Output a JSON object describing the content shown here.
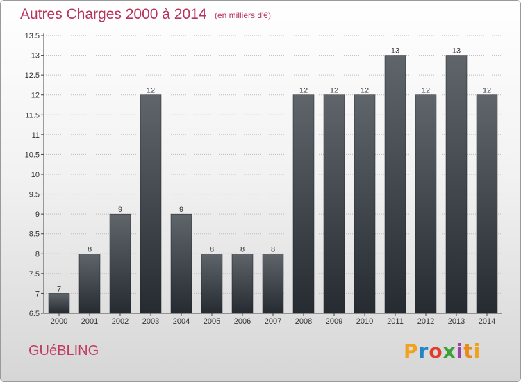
{
  "header": {
    "title": "Autres Charges 2000 à 2014",
    "subtitle": "(en milliers d'€)"
  },
  "footer": {
    "commune": "GUéBLING",
    "logo_text": "Proxiti"
  },
  "colors": {
    "title": "#b8325a",
    "bar_top": "#5f656b",
    "bar_bottom": "#262b31",
    "grid": "#bbbbbb"
  },
  "chart_data": {
    "type": "bar",
    "title": "Autres Charges 2000 à 2014",
    "subtitle": "(en milliers d'€)",
    "categories": [
      "2000",
      "2001",
      "2002",
      "2003",
      "2004",
      "2005",
      "2006",
      "2007",
      "2008",
      "2009",
      "2010",
      "2011",
      "2012",
      "2013",
      "2014"
    ],
    "values": [
      7,
      8,
      9,
      12,
      9,
      8,
      8,
      8,
      12,
      12,
      12,
      13,
      12,
      13,
      12
    ],
    "data_labels": [
      "7",
      "8",
      "9",
      "12",
      "9",
      "8",
      "8",
      "8",
      "12",
      "12",
      "12",
      "13",
      "12",
      "13",
      "12"
    ],
    "ylim": [
      6.5,
      13.5
    ],
    "yticks": [
      6.5,
      7,
      7.5,
      8,
      8.5,
      9,
      9.5,
      10,
      10.5,
      11,
      11.5,
      12,
      12.5,
      13,
      13.5
    ],
    "ytick_labels": [
      "6.5",
      "7",
      "7.5",
      "8",
      "8.5",
      "9",
      "9.5",
      "10",
      "10.5",
      "11",
      "11.5",
      "12",
      "12.5",
      "13",
      "13.5"
    ],
    "xlabel": "",
    "ylabel": "",
    "grid": true
  }
}
